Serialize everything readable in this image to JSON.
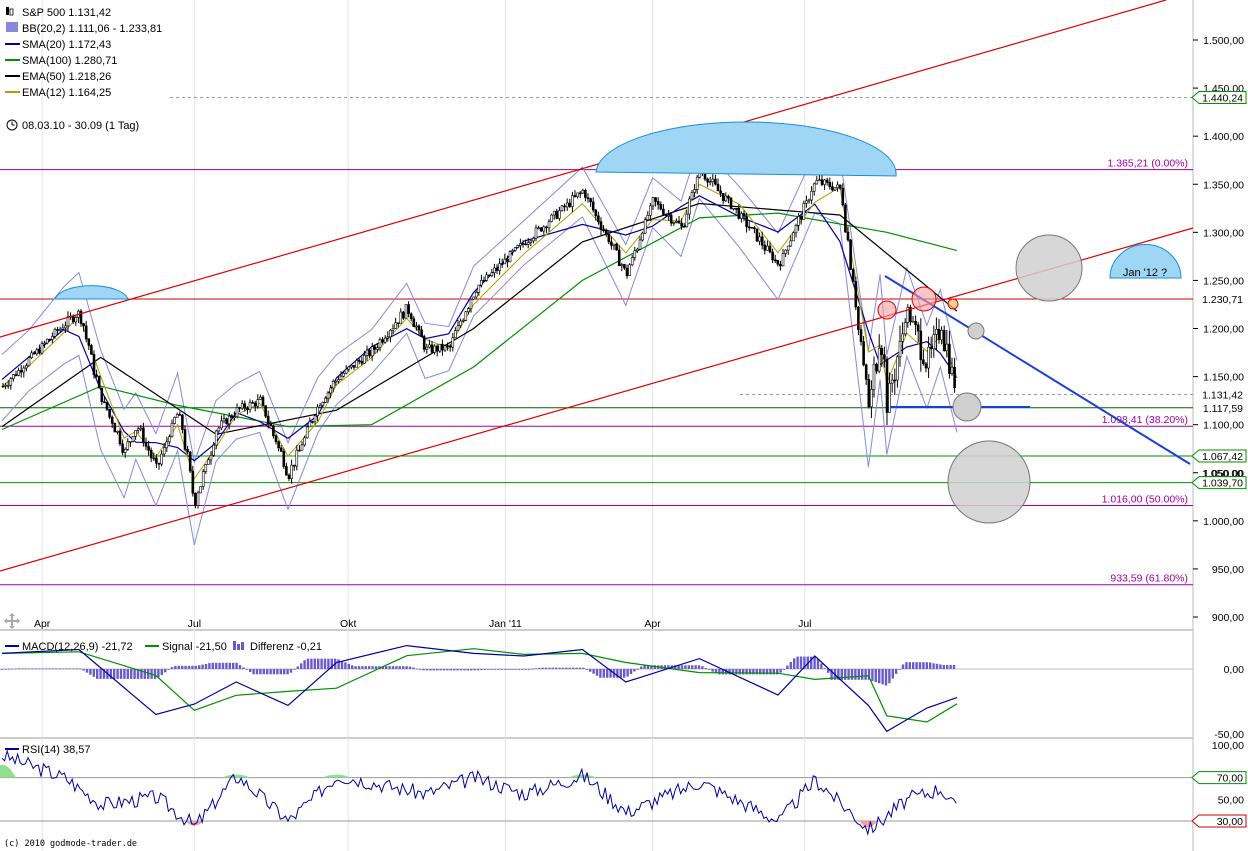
{
  "title": "S&P 500 1.131,42",
  "period": "08.03.10 - 30.09 (1 Tag)",
  "copyright": "(c) 2010 godmode-trader.de",
  "legend": [
    {
      "key": "title",
      "label": "S&P 500 1.131,42",
      "color": "#000000",
      "icon": "candle-icon"
    },
    {
      "key": "bb",
      "label": "BB(20,2) 1.111,06 - 1.233,81",
      "color": "#8888dd",
      "icon": "square-icon"
    },
    {
      "key": "sma20",
      "label": "SMA(20) 1.172,43",
      "color": "#0000a0",
      "icon": "line-icon"
    },
    {
      "key": "sma100",
      "label": "SMA(100) 1.280,71",
      "color": "#009000",
      "icon": "line-icon"
    },
    {
      "key": "ema50",
      "label": "EMA(50) 1.218,26",
      "color": "#000000",
      "icon": "line-icon"
    },
    {
      "key": "ema12",
      "label": "EMA(12) 1.164,25",
      "color": "#b0a000",
      "icon": "line-icon"
    }
  ],
  "macd_legend": [
    {
      "label": "MACD(12,26,9) -21,72",
      "color": "#0000a0"
    },
    {
      "label": "Signal -21,50",
      "color": "#009000"
    },
    {
      "label": "Differenz -0,21",
      "color": "#5555cc"
    }
  ],
  "rsi_legend": {
    "label": "RSI(14) 38,57",
    "color": "#0000a0"
  },
  "annotation": "Jan '12 ?",
  "chart_data": {
    "type": "candlestick",
    "x_ticks": [
      "Apr",
      "Jul",
      "Okt",
      "Jan '11",
      "Apr",
      "Jul"
    ],
    "y_ticks": [
      "1.500,00",
      "1.450,00",
      "1.400,00",
      "1.350,00",
      "1.300,00",
      "1.250,00",
      "1.200,00",
      "1.150,00",
      "1.100,00",
      "1.050,00",
      "1.000,00",
      "950,00",
      "900,00"
    ],
    "ylim": [
      900,
      1500
    ],
    "last_close": 1131.42,
    "price_tags": [
      {
        "value": 1440.24,
        "label": "1.440,24",
        "style": "arrow"
      },
      {
        "value": 1230.71,
        "label": "1.230,71",
        "style": "plain"
      },
      {
        "value": 1131.42,
        "label": "1.131,42",
        "style": "plain"
      },
      {
        "value": 1117.59,
        "label": "1.117,59",
        "style": "plain"
      },
      {
        "value": 1067.42,
        "label": "1.067,42",
        "style": "arrow"
      },
      {
        "value": 1050.0,
        "label": "1.050,00",
        "style": "plain"
      },
      {
        "value": 1039.7,
        "label": "1.039,70",
        "style": "arrow"
      }
    ],
    "fib_levels": [
      {
        "value": 1365.21,
        "label": "1.365,21 (0.00%)"
      },
      {
        "value": 1098.41,
        "label": "1.098,41 (38.20%)"
      },
      {
        "value": 1016.0,
        "label": "1.016,00 (50.00%)"
      },
      {
        "value": 933.59,
        "label": "933,59 (61.80%)"
      }
    ],
    "horizontal_lines": [
      {
        "value": 1230.71,
        "color": "#cc0000"
      },
      {
        "value": 1117.59,
        "color": "#006000"
      },
      {
        "value": 1067.42,
        "color": "#009000"
      },
      {
        "value": 1039.7,
        "color": "#009000"
      }
    ],
    "macd_ticks": [
      "0,00",
      "-50,00"
    ],
    "rsi_ticks": [
      "100,00",
      "70,00",
      "50,00",
      "30,00"
    ],
    "rsi_tags": [
      "70,00",
      "30,00"
    ],
    "price_series": [
      [
        "2010-03-08",
        1140
      ],
      [
        "2010-03-24",
        1168
      ],
      [
        "2010-04-14",
        1205
      ],
      [
        "2010-04-23",
        1217
      ],
      [
        "2010-05-06",
        1128
      ],
      [
        "2010-05-20",
        1072
      ],
      [
        "2010-05-27",
        1100
      ],
      [
        "2010-06-08",
        1055
      ],
      [
        "2010-06-21",
        1115
      ],
      [
        "2010-07-01",
        1020
      ],
      [
        "2010-07-14",
        1095
      ],
      [
        "2010-07-26",
        1115
      ],
      [
        "2010-08-09",
        1125
      ],
      [
        "2010-08-26",
        1048
      ],
      [
        "2010-09-13",
        1122
      ],
      [
        "2010-09-24",
        1148
      ],
      [
        "2010-10-15",
        1177
      ],
      [
        "2010-11-05",
        1222
      ],
      [
        "2010-11-16",
        1178
      ],
      [
        "2010-11-30",
        1180
      ],
      [
        "2010-12-15",
        1240
      ],
      [
        "2011-01-14",
        1290
      ],
      [
        "2011-02-18",
        1343
      ],
      [
        "2011-03-16",
        1257
      ],
      [
        "2011-04-01",
        1332
      ],
      [
        "2011-04-18",
        1305
      ],
      [
        "2011-04-29",
        1365
      ],
      [
        "2011-05-23",
        1317
      ],
      [
        "2011-06-15",
        1266
      ],
      [
        "2011-07-07",
        1353
      ],
      [
        "2011-07-22",
        1345
      ],
      [
        "2011-08-08",
        1119
      ],
      [
        "2011-08-15",
        1204
      ],
      [
        "2011-08-19",
        1123
      ],
      [
        "2011-08-31",
        1219
      ],
      [
        "2011-09-12",
        1162
      ],
      [
        "2011-09-20",
        1202
      ],
      [
        "2011-09-30",
        1131
      ]
    ],
    "sma100_series": [
      [
        "2010-03-08",
        1095
      ],
      [
        "2010-05-06",
        1140
      ],
      [
        "2010-06-21",
        1120
      ],
      [
        "2010-08-26",
        1098
      ],
      [
        "2010-10-15",
        1100
      ],
      [
        "2010-12-15",
        1160
      ],
      [
        "2011-02-18",
        1250
      ],
      [
        "2011-04-29",
        1315
      ],
      [
        "2011-06-15",
        1320
      ],
      [
        "2011-08-19",
        1300
      ],
      [
        "2011-09-30",
        1281
      ]
    ],
    "ema50_series": [
      [
        "2010-03-08",
        1098
      ],
      [
        "2010-05-06",
        1170
      ],
      [
        "2010-07-14",
        1090
      ],
      [
        "2010-09-24",
        1115
      ],
      [
        "2010-12-15",
        1200
      ],
      [
        "2011-02-18",
        1290
      ],
      [
        "2011-04-29",
        1330
      ],
      [
        "2011-07-22",
        1318
      ],
      [
        "2011-09-30",
        1218
      ]
    ],
    "macd_series": [
      [
        "2010-03-08",
        12
      ],
      [
        "2010-04-23",
        15
      ],
      [
        "2010-06-08",
        -35
      ],
      [
        "2010-07-01",
        -27
      ],
      [
        "2010-07-26",
        -10
      ],
      [
        "2010-08-26",
        -28
      ],
      [
        "2010-09-24",
        5
      ],
      [
        "2010-11-05",
        18
      ],
      [
        "2010-12-15",
        12
      ],
      [
        "2011-01-14",
        10
      ],
      [
        "2011-02-18",
        15
      ],
      [
        "2011-03-16",
        -10
      ],
      [
        "2011-04-29",
        8
      ],
      [
        "2011-06-15",
        -20
      ],
      [
        "2011-07-07",
        10
      ],
      [
        "2011-08-08",
        -28
      ],
      [
        "2011-08-19",
        -48
      ],
      [
        "2011-09-12",
        -30
      ],
      [
        "2011-09-30",
        -22
      ]
    ],
    "rsi_series": [
      [
        "2010-03-08",
        90
      ],
      [
        "2010-04-14",
        70
      ],
      [
        "2010-05-06",
        45
      ],
      [
        "2010-06-08",
        52
      ],
      [
        "2010-07-01",
        25
      ],
      [
        "2010-07-26",
        72
      ],
      [
        "2010-08-26",
        30
      ],
      [
        "2010-09-24",
        72
      ],
      [
        "2010-11-16",
        55
      ],
      [
        "2010-12-15",
        70
      ],
      [
        "2011-01-14",
        55
      ],
      [
        "2011-02-18",
        72
      ],
      [
        "2011-03-16",
        38
      ],
      [
        "2011-04-29",
        66
      ],
      [
        "2011-06-15",
        30
      ],
      [
        "2011-07-07",
        68
      ],
      [
        "2011-08-08",
        22
      ],
      [
        "2011-08-31",
        50
      ],
      [
        "2011-09-20",
        60
      ],
      [
        "2011-09-30",
        38
      ]
    ]
  }
}
